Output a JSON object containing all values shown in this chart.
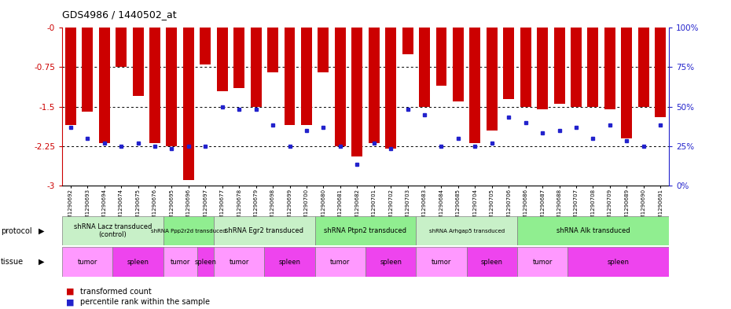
{
  "title": "GDS4986 / 1440502_at",
  "samples": [
    "GSM1290692",
    "GSM1290693",
    "GSM1290694",
    "GSM1290674",
    "GSM1290675",
    "GSM1290676",
    "GSM1290695",
    "GSM1290696",
    "GSM1290697",
    "GSM1290677",
    "GSM1290678",
    "GSM1290679",
    "GSM1290698",
    "GSM1290699",
    "GSM1290700",
    "GSM1290680",
    "GSM1290681",
    "GSM1290682",
    "GSM1290701",
    "GSM1290702",
    "GSM1290703",
    "GSM1290683",
    "GSM1290684",
    "GSM1290685",
    "GSM1290704",
    "GSM1290705",
    "GSM1290706",
    "GSM1290686",
    "GSM1290687",
    "GSM1290688",
    "GSM1290707",
    "GSM1290708",
    "GSM1290709",
    "GSM1290689",
    "GSM1290690",
    "GSM1290691"
  ],
  "red_values": [
    -1.85,
    -1.6,
    -2.2,
    -0.75,
    -1.3,
    -2.2,
    -2.25,
    -2.9,
    -0.7,
    -1.2,
    -1.15,
    -1.5,
    -0.85,
    -1.85,
    -1.85,
    -0.85,
    -2.25,
    -2.45,
    -2.2,
    -2.3,
    -0.5,
    -1.5,
    -1.1,
    -1.4,
    -2.2,
    -1.95,
    -1.35,
    -1.5,
    -1.55,
    -1.45,
    -1.5,
    -1.5,
    -1.55,
    -2.1,
    -1.5,
    -1.7
  ],
  "blue_values": [
    -1.9,
    -2.1,
    -2.2,
    -2.25,
    -2.2,
    -2.25,
    -2.3,
    -2.25,
    -2.25,
    -1.5,
    -1.55,
    -1.55,
    -1.85,
    -2.25,
    -1.95,
    -1.9,
    -2.25,
    -2.6,
    -2.2,
    -2.3,
    -1.55,
    -1.65,
    -2.25,
    -2.1,
    -2.25,
    -2.2,
    -1.7,
    -1.8,
    -2.0,
    -1.95,
    -1.9,
    -2.1,
    -1.85,
    -2.15,
    -2.25,
    -1.85
  ],
  "ylim_min": -3.0,
  "ylim_max": 0.0,
  "yticks_left": [
    0.0,
    -0.75,
    -1.5,
    -2.25,
    -3.0
  ],
  "ytick_left_labels": [
    "-0",
    "-0.75",
    "-1.5",
    "-2.25",
    "-3"
  ],
  "yticks_right_pct": [
    100,
    75,
    50,
    25,
    0
  ],
  "protocols": [
    {
      "label": "shRNA Lacz transduced\n(control)",
      "start": 0,
      "end": 5,
      "light": true
    },
    {
      "label": "shRNA Ppp2r2d transduced",
      "start": 6,
      "end": 8,
      "light": false
    },
    {
      "label": "shRNA Egr2 transduced",
      "start": 9,
      "end": 14,
      "light": true
    },
    {
      "label": "shRNA Ptpn2 transduced",
      "start": 15,
      "end": 20,
      "light": false
    },
    {
      "label": "shRNA Arhgap5 transduced",
      "start": 21,
      "end": 26,
      "light": true
    },
    {
      "label": "shRNA Alk transduced",
      "start": 27,
      "end": 35,
      "light": false
    }
  ],
  "tissues": [
    {
      "label": "tumor",
      "start": 0,
      "end": 2
    },
    {
      "label": "spleen",
      "start": 3,
      "end": 5
    },
    {
      "label": "tumor",
      "start": 6,
      "end": 7
    },
    {
      "label": "spleen",
      "start": 8,
      "end": 8
    },
    {
      "label": "tumor",
      "start": 9,
      "end": 11
    },
    {
      "label": "spleen",
      "start": 12,
      "end": 14
    },
    {
      "label": "tumor",
      "start": 15,
      "end": 17
    },
    {
      "label": "spleen",
      "start": 18,
      "end": 20
    },
    {
      "label": "tumor",
      "start": 21,
      "end": 23
    },
    {
      "label": "spleen",
      "start": 24,
      "end": 26
    },
    {
      "label": "tumor",
      "start": 27,
      "end": 29
    },
    {
      "label": "spleen",
      "start": 30,
      "end": 35
    }
  ],
  "bar_color": "#CC0000",
  "dot_color": "#2222CC",
  "left_axis_color": "#CC0000",
  "right_axis_color": "#2222CC",
  "proto_color_light": "#c8f0c8",
  "proto_color_dark": "#90EE90",
  "tumor_color": "#FF99FF",
  "spleen_color": "#EE44EE"
}
